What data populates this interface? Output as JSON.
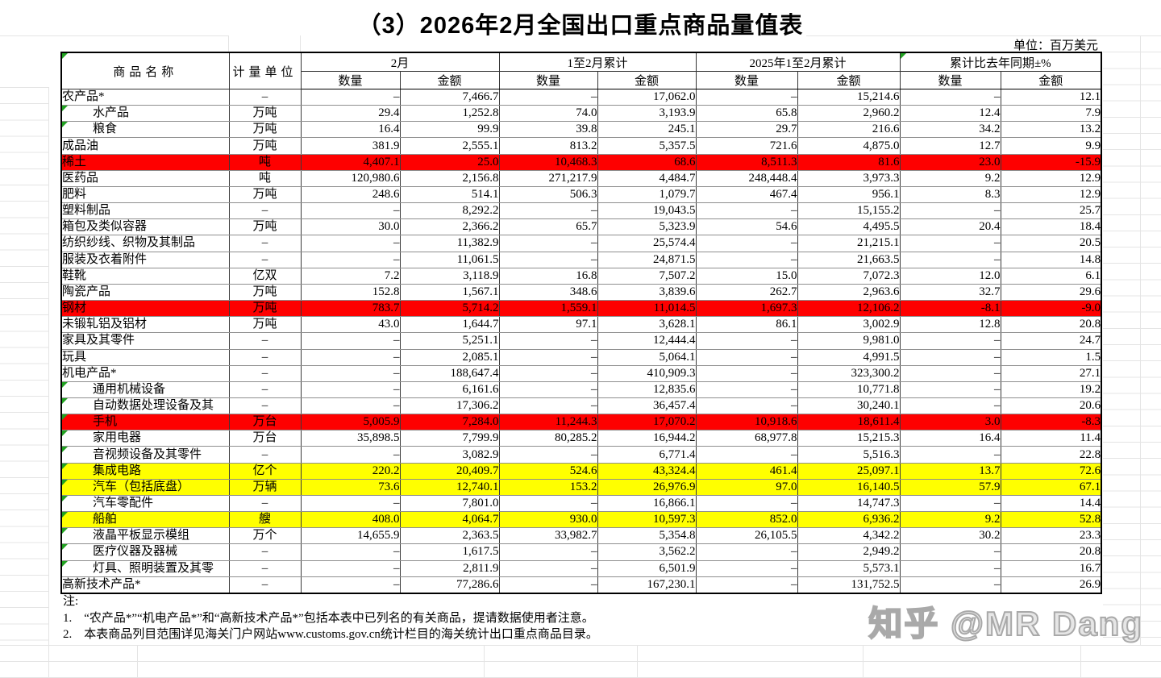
{
  "page": {
    "title": "（3）2026年2月全国出口重点商品量值表",
    "unit_note": "单位：百万美元",
    "watermark": "知乎 @MR Dang"
  },
  "colors": {
    "highlight_red": "#fe0000",
    "highlight_yellow": "#ffff00",
    "flag_green": "#21a121"
  },
  "table": {
    "headers": {
      "commodity": "商品名称",
      "unit": "计量单位",
      "quantity": "数量",
      "amount": "金额",
      "groups": [
        {
          "label": "2月"
        },
        {
          "label": "1至2月累计"
        },
        {
          "label": "2025年1至2月累计"
        },
        {
          "label": "累计比去年同期±%"
        }
      ]
    },
    "rows": [
      {
        "name": "农产品*",
        "indent": 0,
        "flag": false,
        "highlight": "none",
        "unit": "–",
        "cells": [
          "–",
          "7,466.7",
          "–",
          "17,062.0",
          "–",
          "15,214.6",
          "–",
          "12.1"
        ]
      },
      {
        "name": "水产品",
        "indent": 1,
        "flag": true,
        "highlight": "none",
        "unit": "万吨",
        "cells": [
          "29.4",
          "1,252.8",
          "74.0",
          "3,193.9",
          "65.8",
          "2,960.2",
          "12.4",
          "7.9"
        ]
      },
      {
        "name": "粮食",
        "indent": 1,
        "flag": true,
        "highlight": "none",
        "unit": "万吨",
        "cells": [
          "16.4",
          "99.9",
          "39.8",
          "245.1",
          "29.7",
          "216.6",
          "34.2",
          "13.2"
        ]
      },
      {
        "name": "成品油",
        "indent": 0,
        "flag": false,
        "highlight": "none",
        "unit": "万吨",
        "cells": [
          "381.9",
          "2,555.1",
          "813.2",
          "5,357.5",
          "721.6",
          "4,875.0",
          "12.7",
          "9.9"
        ]
      },
      {
        "name": "稀土",
        "indent": 0,
        "flag": false,
        "highlight": "red",
        "unit": "吨",
        "cells": [
          "4,407.1",
          "25.0",
          "10,468.3",
          "68.6",
          "8,511.3",
          "81.6",
          "23.0",
          "-15.9"
        ]
      },
      {
        "name": "医药品",
        "indent": 0,
        "flag": false,
        "highlight": "none",
        "unit": "吨",
        "cells": [
          "120,980.6",
          "2,156.8",
          "271,217.9",
          "4,484.7",
          "248,448.4",
          "3,973.3",
          "9.2",
          "12.9"
        ]
      },
      {
        "name": "肥料",
        "indent": 0,
        "flag": false,
        "highlight": "none",
        "unit": "万吨",
        "cells": [
          "248.6",
          "514.1",
          "506.3",
          "1,079.7",
          "467.4",
          "956.1",
          "8.3",
          "12.9"
        ]
      },
      {
        "name": "塑料制品",
        "indent": 0,
        "flag": false,
        "highlight": "none",
        "unit": "–",
        "cells": [
          "–",
          "8,292.2",
          "–",
          "19,043.5",
          "–",
          "15,155.2",
          "–",
          "25.7"
        ]
      },
      {
        "name": "箱包及类似容器",
        "indent": 0,
        "flag": false,
        "highlight": "none",
        "unit": "万吨",
        "cells": [
          "30.0",
          "2,366.2",
          "65.7",
          "5,323.9",
          "54.6",
          "4,495.5",
          "20.4",
          "18.4"
        ]
      },
      {
        "name": "纺织纱线、织物及其制品",
        "indent": 0,
        "flag": false,
        "highlight": "none",
        "unit": "–",
        "cells": [
          "–",
          "11,382.9",
          "–",
          "25,574.4",
          "–",
          "21,215.1",
          "–",
          "20.5"
        ]
      },
      {
        "name": "服装及衣着附件",
        "indent": 0,
        "flag": false,
        "highlight": "none",
        "unit": "–",
        "cells": [
          "–",
          "11,061.5",
          "–",
          "24,871.5",
          "–",
          "21,663.5",
          "–",
          "14.8"
        ]
      },
      {
        "name": "鞋靴",
        "indent": 0,
        "flag": false,
        "highlight": "none",
        "unit": "亿双",
        "cells": [
          "7.2",
          "3,118.9",
          "16.8",
          "7,507.2",
          "15.0",
          "7,072.3",
          "12.0",
          "6.1"
        ]
      },
      {
        "name": "陶瓷产品",
        "indent": 0,
        "flag": false,
        "highlight": "none",
        "unit": "万吨",
        "cells": [
          "152.8",
          "1,567.1",
          "348.6",
          "3,839.6",
          "262.7",
          "2,963.6",
          "32.7",
          "29.6"
        ]
      },
      {
        "name": "钢材",
        "indent": 0,
        "flag": false,
        "highlight": "red",
        "unit": "万吨",
        "cells": [
          "783.7",
          "5,714.2",
          "1,559.1",
          "11,014.5",
          "1,697.3",
          "12,106.2",
          "-8.1",
          "-9.0"
        ]
      },
      {
        "name": "未锻轧铝及铝材",
        "indent": 0,
        "flag": false,
        "highlight": "none",
        "unit": "万吨",
        "cells": [
          "43.0",
          "1,644.7",
          "97.1",
          "3,628.1",
          "86.1",
          "3,002.9",
          "12.8",
          "20.8"
        ]
      },
      {
        "name": "家具及其零件",
        "indent": 0,
        "flag": false,
        "highlight": "none",
        "unit": "–",
        "cells": [
          "–",
          "5,251.1",
          "–",
          "12,444.4",
          "–",
          "9,981.0",
          "–",
          "24.7"
        ]
      },
      {
        "name": "玩具",
        "indent": 0,
        "flag": false,
        "highlight": "none",
        "unit": "–",
        "cells": [
          "–",
          "2,085.1",
          "–",
          "5,064.1",
          "–",
          "4,991.5",
          "–",
          "1.5"
        ]
      },
      {
        "name": "机电产品*",
        "indent": 0,
        "flag": false,
        "highlight": "none",
        "unit": "–",
        "cells": [
          "–",
          "188,647.4",
          "–",
          "410,909.3",
          "–",
          "323,300.2",
          "–",
          "27.1"
        ]
      },
      {
        "name": "通用机械设备",
        "indent": 1,
        "flag": true,
        "highlight": "none",
        "unit": "–",
        "cells": [
          "–",
          "6,161.6",
          "–",
          "12,835.6",
          "–",
          "10,771.8",
          "–",
          "19.2"
        ]
      },
      {
        "name": "自动数据处理设备及其",
        "indent": 1,
        "flag": true,
        "highlight": "none",
        "unit": "–",
        "cells": [
          "–",
          "17,306.2",
          "–",
          "36,457.4",
          "–",
          "30,240.1",
          "–",
          "20.6"
        ]
      },
      {
        "name": "手机",
        "indent": 1,
        "flag": true,
        "highlight": "red",
        "unit": "万台",
        "cells": [
          "5,005.9",
          "7,284.0",
          "11,244.3",
          "17,070.2",
          "10,918.6",
          "18,611.4",
          "3.0",
          "-8.3"
        ]
      },
      {
        "name": "家用电器",
        "indent": 1,
        "flag": true,
        "highlight": "none",
        "unit": "万台",
        "cells": [
          "35,898.5",
          "7,799.9",
          "80,285.2",
          "16,944.2",
          "68,977.8",
          "15,215.3",
          "16.4",
          "11.4"
        ]
      },
      {
        "name": "音视频设备及其零件",
        "indent": 1,
        "flag": true,
        "highlight": "none",
        "unit": "–",
        "cells": [
          "–",
          "3,082.9",
          "–",
          "6,771.4",
          "–",
          "5,516.3",
          "–",
          "22.8"
        ]
      },
      {
        "name": "集成电路",
        "indent": 1,
        "flag": true,
        "highlight": "yellow",
        "unit": "亿个",
        "cells": [
          "220.2",
          "20,409.7",
          "524.6",
          "43,324.4",
          "461.4",
          "25,097.1",
          "13.7",
          "72.6"
        ]
      },
      {
        "name": "汽车（包括底盘）",
        "indent": 1,
        "flag": true,
        "highlight": "yellow",
        "unit": "万辆",
        "cells": [
          "73.6",
          "12,740.1",
          "153.2",
          "26,976.9",
          "97.0",
          "16,140.5",
          "57.9",
          "67.1"
        ]
      },
      {
        "name": "汽车零配件",
        "indent": 1,
        "flag": true,
        "highlight": "none",
        "unit": "–",
        "cells": [
          "–",
          "7,801.0",
          "–",
          "16,866.1",
          "–",
          "14,747.3",
          "–",
          "14.4"
        ]
      },
      {
        "name": "船舶",
        "indent": 1,
        "flag": true,
        "highlight": "yellow",
        "unit": "艘",
        "cells": [
          "408.0",
          "4,064.7",
          "930.0",
          "10,597.3",
          "852.0",
          "6,936.2",
          "9.2",
          "52.8"
        ]
      },
      {
        "name": "液晶平板显示模组",
        "indent": 1,
        "flag": true,
        "highlight": "none",
        "unit": "万个",
        "cells": [
          "14,655.9",
          "2,363.5",
          "33,982.7",
          "5,354.8",
          "26,105.5",
          "4,342.2",
          "30.2",
          "23.3"
        ]
      },
      {
        "name": "医疗仪器及器械",
        "indent": 1,
        "flag": true,
        "highlight": "none",
        "unit": "–",
        "cells": [
          "–",
          "1,617.5",
          "–",
          "3,562.2",
          "–",
          "2,949.2",
          "–",
          "20.8"
        ]
      },
      {
        "name": "灯具、照明装置及其零",
        "indent": 1,
        "flag": true,
        "highlight": "none",
        "unit": "–",
        "cells": [
          "–",
          "2,811.9",
          "–",
          "6,501.9",
          "–",
          "5,573.1",
          "–",
          "16.7"
        ]
      },
      {
        "name": "高新技术产品*",
        "indent": 0,
        "flag": false,
        "highlight": "none",
        "unit": "–",
        "cells": [
          "–",
          "77,286.6",
          "–",
          "167,230.1",
          "–",
          "131,752.5",
          "–",
          "26.9"
        ]
      }
    ]
  },
  "notes": {
    "label": "注:",
    "items": [
      "1.　“农产品*”“机电产品*”和“高新技术产品*”包括本表中已列名的有关商品，提请数据使用者注意。",
      "2.　本表商品列目范围详见海关门户网站www.customs.gov.cn统计栏目的海关统计出口重点商品目录。"
    ]
  }
}
